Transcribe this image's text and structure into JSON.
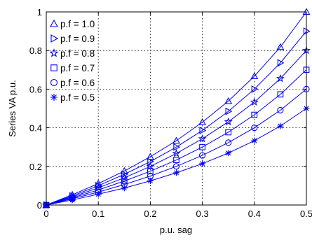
{
  "chart_data": {
    "type": "line",
    "xlabel": "p.u. sag",
    "ylabel": "Series VA p.u.",
    "xlim": [
      0,
      0.5
    ],
    "ylim": [
      0,
      1
    ],
    "xticks": [
      "0",
      "0.1",
      "0.2",
      "0.3",
      "0.4",
      "0.5"
    ],
    "yticks": [
      "0",
      "0.2",
      "0.4",
      "0.6",
      "0.8",
      "1"
    ],
    "grid": true,
    "legend_position": "top-left",
    "line_color": "#0000ff",
    "x": [
      0,
      0.05,
      0.1,
      0.15,
      0.2,
      0.25,
      0.3,
      0.35,
      0.4,
      0.45,
      0.5
    ],
    "series": [
      {
        "name": "p.f = 1.0",
        "marker": "triangle-up",
        "values": [
          0,
          0.053,
          0.111,
          0.176,
          0.25,
          0.333,
          0.429,
          0.538,
          0.667,
          0.818,
          1.0
        ]
      },
      {
        "name": "p.f = 0.9",
        "marker": "triangle-right",
        "values": [
          0,
          0.047,
          0.1,
          0.159,
          0.225,
          0.3,
          0.386,
          0.485,
          0.6,
          0.736,
          0.9
        ]
      },
      {
        "name": "p.f = 0.8",
        "marker": "star",
        "values": [
          0,
          0.042,
          0.089,
          0.141,
          0.2,
          0.267,
          0.343,
          0.431,
          0.533,
          0.655,
          0.8
        ]
      },
      {
        "name": "p.f = 0.7",
        "marker": "square",
        "values": [
          0,
          0.037,
          0.078,
          0.124,
          0.175,
          0.233,
          0.3,
          0.377,
          0.467,
          0.573,
          0.7
        ]
      },
      {
        "name": "p.f = 0.6",
        "marker": "circle",
        "values": [
          0,
          0.032,
          0.067,
          0.106,
          0.15,
          0.2,
          0.257,
          0.323,
          0.4,
          0.491,
          0.6
        ]
      },
      {
        "name": "p.f = 0.5",
        "marker": "asterisk",
        "values": [
          0,
          0.026,
          0.056,
          0.088,
          0.125,
          0.167,
          0.214,
          0.269,
          0.333,
          0.409,
          0.5
        ]
      }
    ]
  }
}
